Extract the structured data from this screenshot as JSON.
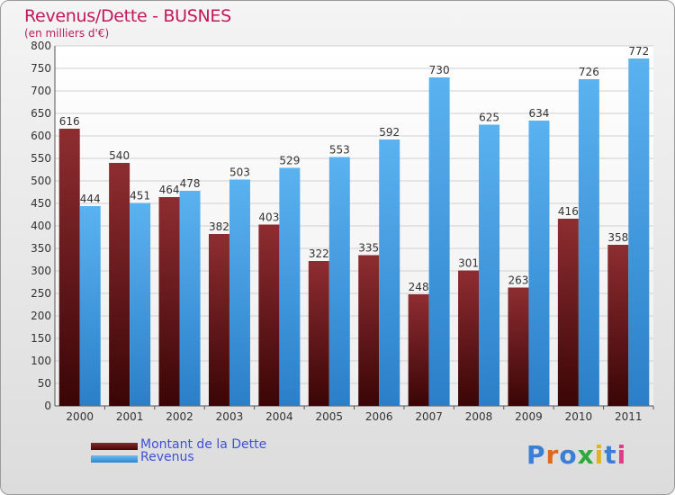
{
  "chart_data": {
    "type": "bar",
    "title": "Revenus/Dette - BUSNES",
    "subtitle": "(en milliers d'€)",
    "categories": [
      "2000",
      "2001",
      "2002",
      "2003",
      "2004",
      "2005",
      "2006",
      "2007",
      "2008",
      "2009",
      "2010",
      "2011"
    ],
    "series": [
      {
        "name": "Montant de la Dette",
        "values": [
          616,
          540,
          464,
          382,
          403,
          322,
          335,
          248,
          301,
          263,
          416,
          358
        ],
        "color": "#7a1e22"
      },
      {
        "name": "Revenus",
        "values": [
          444,
          451,
          478,
          503,
          529,
          553,
          592,
          730,
          625,
          634,
          726,
          772
        ],
        "color": "#4aa3e8"
      }
    ],
    "ylim": [
      0,
      800
    ],
    "yticks": [
      0,
      50,
      100,
      150,
      200,
      250,
      300,
      350,
      400,
      450,
      500,
      550,
      600,
      650,
      700,
      750,
      800
    ],
    "grid": true,
    "legend": "bottom-left"
  },
  "brand": {
    "logo_letters": [
      "P",
      "r",
      "o",
      "x",
      "i",
      "t",
      "i"
    ],
    "logo_colors": [
      "#3a7fd5",
      "#e0671b",
      "#3a7fd5",
      "#2eaa3c",
      "#e0b21b",
      "#3a7fd5",
      "#e03a8a"
    ]
  }
}
